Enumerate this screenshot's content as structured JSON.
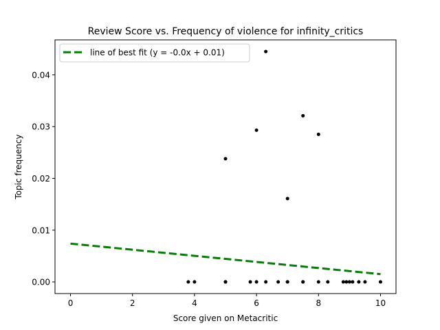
{
  "chart_data": {
    "type": "scatter",
    "title": "Review Score vs. Frequency of violence for infinity_critics",
    "xlabel": "Score given on Metacritic",
    "ylabel": "Topic frequency",
    "xlim": [
      -0.5,
      10.5
    ],
    "ylim": [
      -0.00225,
      0.04675
    ],
    "xticks": [
      0,
      2,
      4,
      6,
      8,
      10
    ],
    "xtick_labels": [
      "0",
      "2",
      "4",
      "6",
      "8",
      "10"
    ],
    "yticks": [
      0.0,
      0.01,
      0.02,
      0.03,
      0.04
    ],
    "ytick_labels": [
      "0.00",
      "0.01",
      "0.02",
      "0.03",
      "0.04"
    ],
    "grid": false,
    "legend_placement": "top-left",
    "series": [
      {
        "kind": "points",
        "color": "#000000",
        "x": [
          3.8,
          4.0,
          5.0,
          5.0,
          5.0,
          5.8,
          6.0,
          6.3,
          6.7,
          7.0,
          7.0,
          7.5,
          7.5,
          8.0,
          8.3,
          8.8,
          8.9,
          9.0,
          9.1,
          9.3,
          9.5,
          10.0,
          5.0,
          6.0,
          6.3,
          7.0,
          7.5,
          8.0
        ],
        "y": [
          0,
          0,
          0,
          0,
          0,
          0,
          0,
          0,
          0,
          0,
          0,
          0,
          0,
          0,
          0,
          0,
          0,
          0,
          0,
          0,
          0,
          0,
          0.0238,
          0.0293,
          0.0445,
          0.0161,
          0.0321,
          0.0285
        ]
      },
      {
        "kind": "line",
        "name": "line of best fit (y = -0.0x + 0.01)",
        "color": "#008000",
        "style": "dashed",
        "x": [
          0,
          10
        ],
        "y": [
          0.0074,
          0.0015
        ]
      }
    ]
  }
}
